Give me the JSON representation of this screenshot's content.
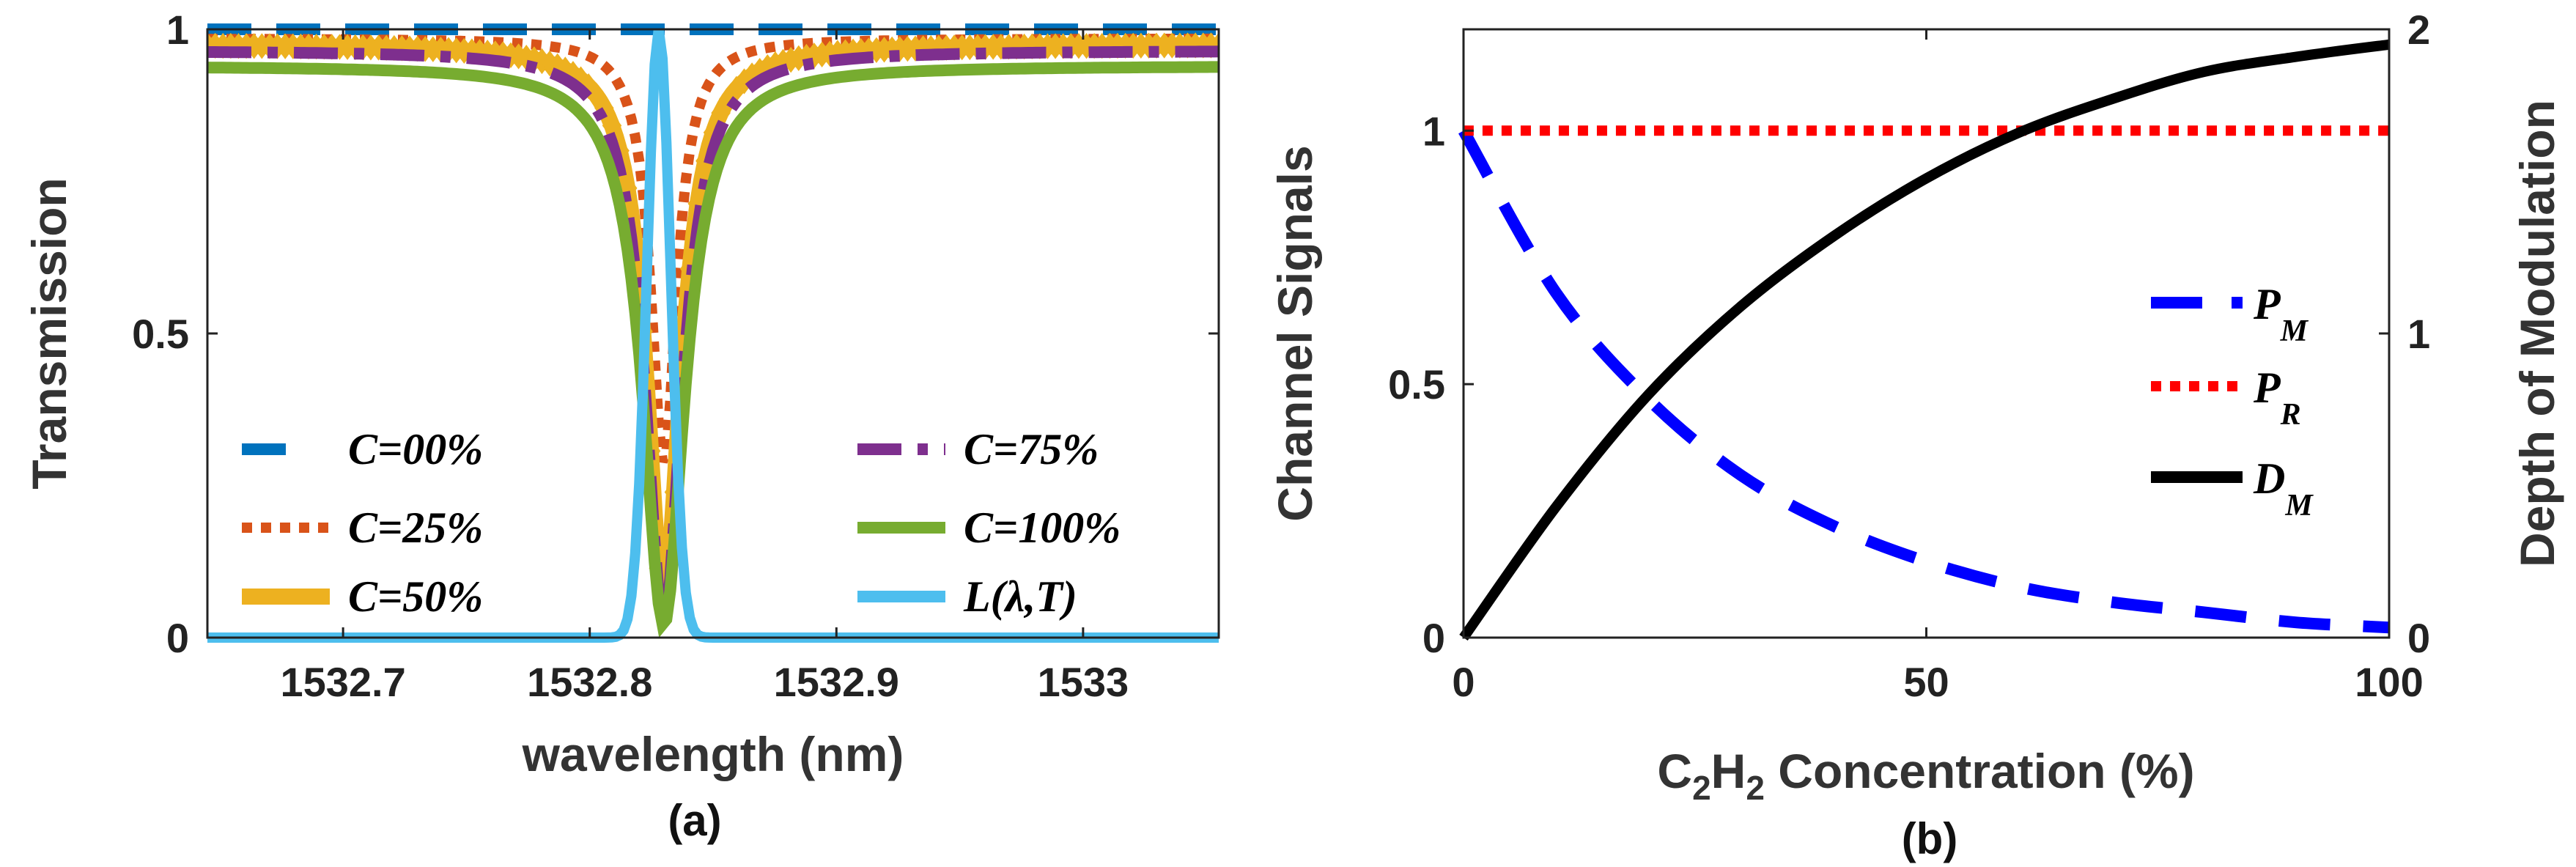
{
  "chart_data": [
    {
      "type": "line",
      "panel_label": "(a)",
      "xlabel": "wavelength (nm)",
      "ylabel": "Transmission",
      "xlim": [
        1532.645,
        1533.055
      ],
      "ylim": [
        0,
        1
      ],
      "xticks": [
        1532.7,
        1532.8,
        1532.9,
        1533.0
      ],
      "xtick_labels": [
        "1532.7",
        "1532.8",
        "1532.9",
        "1533"
      ],
      "yticks": [
        0,
        0.5,
        1
      ],
      "ytick_labels": [
        "0",
        "0.5",
        "1"
      ],
      "grid": false,
      "legend_columns": 2,
      "center_wavelength": 1532.83,
      "series": [
        {
          "name": "C=00%",
          "label_math": "C",
          "label_rest": "=00%",
          "color": "#0072BD",
          "style": "dashed",
          "baseline": 1.0,
          "depth": 0.0,
          "width": 0.055
        },
        {
          "name": "C=25%",
          "label_math": "C",
          "label_rest": "=25%",
          "color": "#D95319",
          "style": "dotted",
          "baseline": 0.985,
          "depth": 0.7,
          "width": 0.04
        },
        {
          "name": "C=50%",
          "label_math": "C",
          "label_rest": "=50%",
          "color": "#EDB120",
          "style": "diamond-markers",
          "baseline": 0.975,
          "depth": 0.91,
          "width": 0.055
        },
        {
          "name": "C=75%",
          "label_math": "C",
          "label_rest": "=75%",
          "color": "#7E2F8E",
          "style": "dashdot",
          "baseline": 0.965,
          "depth": 0.94,
          "width": 0.058
        },
        {
          "name": "C=100%",
          "label_math": "C",
          "label_rest": "=100%",
          "color": "#77AC30",
          "style": "solid",
          "baseline": 0.94,
          "depth": 0.92,
          "width": 0.065
        },
        {
          "name": "L(λ,T)",
          "label_math": "L(λ,T)",
          "label_rest": "",
          "color": "#4DBEEE",
          "style": "solid",
          "kind": "gaussian",
          "peak": 1.0,
          "sigma": 0.0048,
          "center": 1532.828
        }
      ]
    },
    {
      "type": "line",
      "panel_label": "(b)",
      "xlabel_parts": [
        "C",
        "2",
        "H",
        "2",
        " Concentration (%)"
      ],
      "ylabel": "Channel Signals",
      "ylabel_right": "Depth of Modulation",
      "xlim": [
        0,
        100
      ],
      "ylim": [
        0,
        1.2
      ],
      "ylim_right": [
        0,
        2
      ],
      "xticks": [
        0,
        50,
        100
      ],
      "xtick_labels": [
        "0",
        "50",
        "100"
      ],
      "yticks": [
        0,
        0.5,
        1
      ],
      "ytick_labels": [
        "0",
        "0.5",
        "1"
      ],
      "yticks_right": [
        0,
        1,
        2
      ],
      "ytick_labels_right": [
        "0",
        "1",
        "2"
      ],
      "grid": false,
      "legend_position": "center-right",
      "series": [
        {
          "name": "P_M",
          "label_main": "P",
          "label_sub": "M",
          "color": "#0000FF",
          "style": "dashed",
          "axis": "left",
          "x": [
            0,
            10,
            20,
            30,
            40,
            50,
            60,
            70,
            80,
            90,
            100
          ],
          "y": [
            1.0,
            0.68,
            0.47,
            0.32,
            0.22,
            0.15,
            0.1,
            0.07,
            0.05,
            0.03,
            0.02
          ]
        },
        {
          "name": "P_R",
          "label_main": "P",
          "label_sub": "R",
          "color": "#FF0000",
          "style": "dotted",
          "axis": "left",
          "x": [
            0,
            100
          ],
          "y": [
            1.0,
            1.0
          ]
        },
        {
          "name": "D_M",
          "label_main": "D",
          "label_sub": "M",
          "color": "#000000",
          "style": "solid",
          "axis": "right",
          "x": [
            0,
            10,
            20,
            30,
            40,
            50,
            60,
            70,
            80,
            90,
            100
          ],
          "y": [
            0.0,
            0.43,
            0.8,
            1.09,
            1.32,
            1.51,
            1.66,
            1.77,
            1.86,
            1.91,
            1.95
          ]
        }
      ]
    }
  ]
}
